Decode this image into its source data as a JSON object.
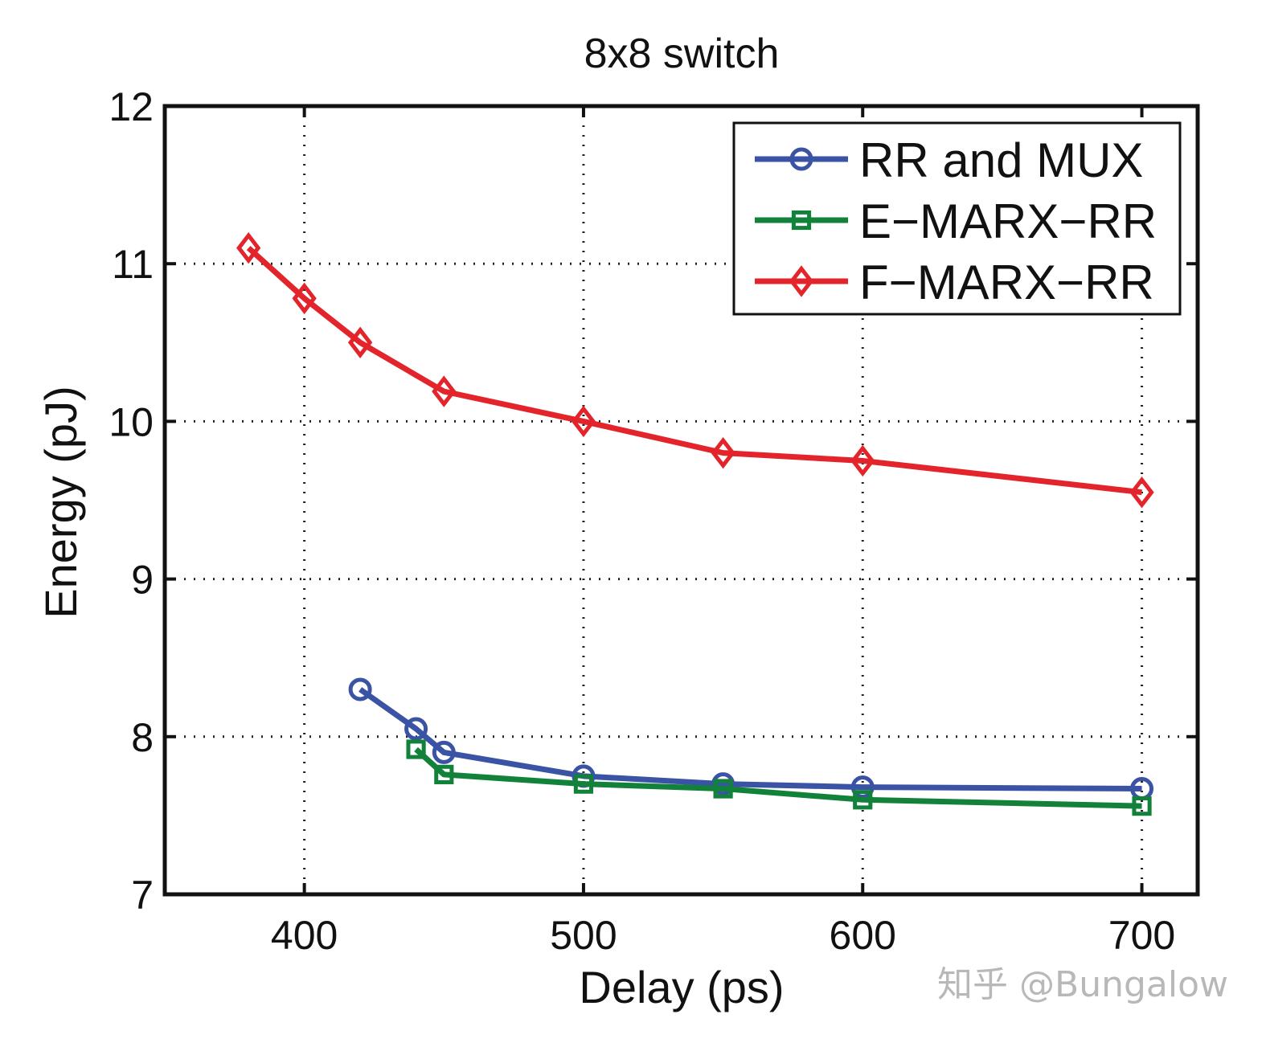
{
  "chart_data": {
    "type": "line",
    "title": "8x8 switch",
    "xlabel": "Delay (ps)",
    "ylabel": "Energy (pJ)",
    "xlim": [
      350,
      720
    ],
    "ylim": [
      7,
      12
    ],
    "xticks": [
      400,
      500,
      600,
      700
    ],
    "yticks": [
      7,
      8,
      9,
      10,
      11,
      12
    ],
    "grid": true,
    "legend_position": "top-right",
    "series": [
      {
        "name": "RR and MUX",
        "color": "#3a53a4",
        "marker": "circle",
        "x": [
          420,
          440,
          450,
          500,
          550,
          600,
          700
        ],
        "y": [
          8.3,
          8.05,
          7.9,
          7.75,
          7.7,
          7.68,
          7.67
        ]
      },
      {
        "name": "E−MARX−RR",
        "color": "#12823b",
        "marker": "square",
        "x": [
          440,
          450,
          500,
          550,
          600,
          700
        ],
        "y": [
          7.92,
          7.76,
          7.7,
          7.67,
          7.6,
          7.56
        ]
      },
      {
        "name": "F−MARX−RR",
        "color": "#e3242b",
        "marker": "diamond",
        "x": [
          380,
          400,
          420,
          450,
          500,
          550,
          600,
          700
        ],
        "y": [
          11.1,
          10.78,
          10.5,
          10.19,
          10.0,
          9.8,
          9.75,
          9.55
        ]
      }
    ]
  },
  "watermark": "知乎 @Bungalow"
}
